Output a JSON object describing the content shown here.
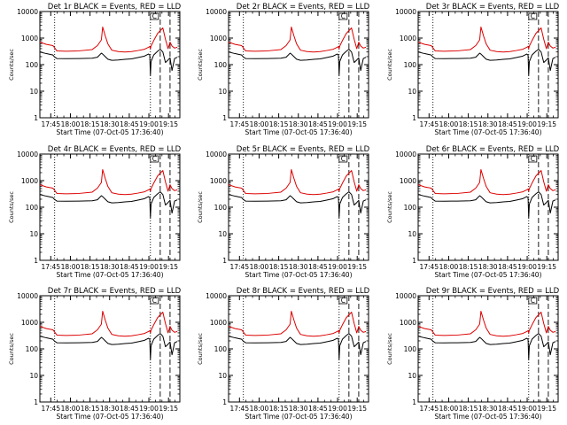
{
  "colors": {
    "events": "#000000",
    "lld": "#dd0000",
    "frame": "#000000"
  },
  "shared": {
    "ylabel": "Counts/sec",
    "xlabel": "Start Time (07-Oct-05 17:36:40)",
    "x_ticks": [
      "17:45",
      "18:00",
      "18:15",
      "18:30",
      "18:45",
      "19:00",
      "19:15"
    ],
    "y_ticks": [
      "1",
      "10",
      "100",
      "1000",
      "10000"
    ],
    "ylim": [
      1,
      10000
    ],
    "yscale": "log",
    "xlim_minutes_after_start": [
      0,
      107
    ],
    "x_tick_positions_minutes": [
      8.33,
      23.33,
      38.33,
      53.33,
      68.33,
      83.33,
      98.33
    ],
    "vline_dotted_minutes": [
      11.3,
      84.5
    ],
    "vline_dashed_minutes": [
      92.0,
      99.5
    ],
    "legend_marker_text": "C"
  },
  "chart_data": [
    {
      "type": "line",
      "title": "Det 1r BLACK = Events, RED = LLD",
      "x": [
        0,
        5,
        10,
        11,
        13,
        20,
        30,
        40,
        44,
        47,
        48,
        50,
        52,
        55,
        60,
        65,
        70,
        75,
        80,
        83,
        84,
        84.5,
        85,
        87,
        90,
        92,
        94,
        96,
        98,
        99.5,
        101,
        103,
        105
      ],
      "series": [
        {
          "values": [
            300,
            260,
            230,
            200,
            170,
            168,
            170,
            175,
            190,
            270,
            250,
            200,
            160,
            145,
            150,
            158,
            165,
            185,
            210,
            250,
            230,
            40,
            130,
            230,
            320,
            380,
            300,
            120,
            150,
            180,
            60,
            170,
            190
          ]
        },
        {
          "values": [
            700,
            580,
            520,
            450,
            330,
            320,
            330,
            370,
            520,
            850,
            2600,
            1200,
            600,
            350,
            310,
            300,
            310,
            340,
            380,
            450,
            480,
            400,
            500,
            800,
            1500,
            1900,
            2400,
            900,
            400,
            700,
            500,
            420,
            450
          ]
        }
      ]
    },
    {
      "type": "line",
      "title": "Det 2r BLACK = Events, RED = LLD",
      "x": [
        0,
        5,
        10,
        11,
        13,
        20,
        30,
        40,
        44,
        47,
        48,
        50,
        52,
        55,
        60,
        65,
        70,
        75,
        80,
        83,
        84,
        84.5,
        85,
        87,
        90,
        92,
        94,
        96,
        98,
        99.5,
        101,
        103,
        105
      ],
      "series": [
        {
          "values": [
            300,
            260,
            230,
            200,
            170,
            168,
            170,
            175,
            190,
            270,
            250,
            200,
            160,
            145,
            150,
            158,
            165,
            185,
            210,
            250,
            230,
            40,
            130,
            230,
            320,
            380,
            300,
            120,
            150,
            180,
            60,
            170,
            190
          ]
        },
        {
          "values": [
            700,
            580,
            520,
            450,
            330,
            320,
            330,
            370,
            520,
            850,
            2600,
            1200,
            600,
            350,
            310,
            300,
            310,
            340,
            380,
            450,
            480,
            400,
            500,
            800,
            1500,
            1900,
            2400,
            900,
            400,
            700,
            500,
            420,
            450
          ]
        }
      ]
    },
    {
      "type": "line",
      "title": "Det 3r BLACK = Events, RED = LLD",
      "x": [
        0,
        5,
        10,
        11,
        13,
        20,
        30,
        40,
        44,
        47,
        48,
        50,
        52,
        55,
        60,
        65,
        70,
        75,
        80,
        83,
        84,
        84.5,
        85,
        87,
        90,
        92,
        94,
        96,
        98,
        99.5,
        101,
        103,
        105
      ],
      "series": [
        {
          "values": [
            300,
            260,
            230,
            200,
            170,
            168,
            170,
            175,
            190,
            270,
            250,
            200,
            160,
            145,
            150,
            158,
            165,
            185,
            210,
            250,
            230,
            40,
            130,
            230,
            320,
            380,
            300,
            120,
            150,
            180,
            60,
            170,
            190
          ]
        },
        {
          "values": [
            700,
            580,
            520,
            450,
            330,
            320,
            330,
            370,
            520,
            850,
            2600,
            1200,
            600,
            350,
            310,
            300,
            310,
            340,
            380,
            450,
            480,
            400,
            500,
            800,
            1500,
            1900,
            2400,
            900,
            400,
            700,
            500,
            420,
            450
          ]
        }
      ]
    },
    {
      "type": "line",
      "title": "Det 4r BLACK = Events, RED = LLD",
      "x": [
        0,
        5,
        10,
        11,
        13,
        20,
        30,
        40,
        44,
        47,
        48,
        50,
        52,
        55,
        60,
        65,
        70,
        75,
        80,
        83,
        84,
        84.5,
        85,
        87,
        90,
        92,
        94,
        96,
        98,
        99.5,
        101,
        103,
        105
      ],
      "series": [
        {
          "values": [
            300,
            260,
            230,
            200,
            170,
            168,
            170,
            175,
            190,
            270,
            250,
            200,
            160,
            145,
            150,
            158,
            165,
            185,
            210,
            250,
            230,
            40,
            130,
            230,
            320,
            380,
            300,
            120,
            150,
            180,
            60,
            170,
            190
          ]
        },
        {
          "values": [
            700,
            580,
            520,
            450,
            330,
            320,
            330,
            370,
            520,
            850,
            2600,
            1200,
            600,
            350,
            310,
            300,
            310,
            340,
            380,
            450,
            480,
            400,
            500,
            800,
            1500,
            1900,
            2400,
            900,
            400,
            700,
            500,
            420,
            450
          ]
        }
      ]
    },
    {
      "type": "line",
      "title": "Det 5r BLACK = Events, RED = LLD",
      "x": [
        0,
        5,
        10,
        11,
        13,
        20,
        30,
        40,
        44,
        47,
        48,
        50,
        52,
        55,
        60,
        65,
        70,
        75,
        80,
        83,
        84,
        84.5,
        85,
        87,
        90,
        92,
        94,
        96,
        98,
        99.5,
        101,
        103,
        105
      ],
      "series": [
        {
          "values": [
            300,
            260,
            230,
            200,
            170,
            168,
            170,
            175,
            190,
            270,
            250,
            200,
            160,
            145,
            150,
            158,
            165,
            185,
            210,
            250,
            230,
            40,
            130,
            230,
            320,
            380,
            300,
            120,
            150,
            180,
            60,
            170,
            190
          ]
        },
        {
          "values": [
            700,
            580,
            520,
            450,
            330,
            320,
            330,
            370,
            520,
            850,
            2600,
            1200,
            600,
            350,
            310,
            300,
            310,
            340,
            380,
            450,
            480,
            400,
            500,
            800,
            1500,
            1900,
            2400,
            900,
            400,
            700,
            500,
            420,
            450
          ]
        }
      ]
    },
    {
      "type": "line",
      "title": "Det 6r BLACK = Events, RED = LLD",
      "x": [
        0,
        5,
        10,
        11,
        13,
        20,
        30,
        40,
        44,
        47,
        48,
        50,
        52,
        55,
        60,
        65,
        70,
        75,
        80,
        83,
        84,
        84.5,
        85,
        87,
        90,
        92,
        94,
        96,
        98,
        99.5,
        101,
        103,
        105
      ],
      "series": [
        {
          "values": [
            300,
            260,
            230,
            200,
            170,
            168,
            170,
            175,
            190,
            270,
            250,
            200,
            160,
            145,
            150,
            158,
            165,
            185,
            210,
            250,
            230,
            40,
            130,
            230,
            320,
            380,
            300,
            120,
            150,
            180,
            60,
            170,
            190
          ]
        },
        {
          "values": [
            700,
            580,
            520,
            450,
            330,
            320,
            330,
            370,
            520,
            850,
            2600,
            1200,
            600,
            350,
            310,
            300,
            310,
            340,
            380,
            450,
            480,
            400,
            500,
            800,
            1500,
            1900,
            2400,
            900,
            400,
            700,
            500,
            420,
            450
          ]
        }
      ]
    },
    {
      "type": "line",
      "title": "Det 7r BLACK = Events, RED = LLD",
      "x": [
        0,
        5,
        10,
        11,
        13,
        20,
        30,
        40,
        44,
        47,
        48,
        50,
        52,
        55,
        60,
        65,
        70,
        75,
        80,
        83,
        84,
        84.5,
        85,
        87,
        90,
        92,
        94,
        96,
        98,
        99.5,
        101,
        103,
        105
      ],
      "series": [
        {
          "values": [
            300,
            260,
            230,
            200,
            170,
            168,
            170,
            175,
            190,
            270,
            250,
            200,
            160,
            145,
            150,
            158,
            165,
            185,
            210,
            250,
            230,
            40,
            130,
            230,
            320,
            380,
            300,
            120,
            150,
            180,
            60,
            170,
            190
          ]
        },
        {
          "values": [
            700,
            580,
            520,
            450,
            330,
            320,
            330,
            370,
            520,
            850,
            2600,
            1200,
            600,
            350,
            310,
            300,
            310,
            340,
            380,
            450,
            480,
            400,
            500,
            800,
            1500,
            1900,
            2400,
            900,
            400,
            700,
            500,
            420,
            450
          ]
        }
      ]
    },
    {
      "type": "line",
      "title": "Det 8r BLACK = Events, RED = LLD",
      "x": [
        0,
        5,
        10,
        11,
        13,
        20,
        30,
        40,
        44,
        47,
        48,
        50,
        52,
        55,
        60,
        65,
        70,
        75,
        80,
        83,
        84,
        84.5,
        85,
        87,
        90,
        92,
        94,
        96,
        98,
        99.5,
        101,
        103,
        105
      ],
      "series": [
        {
          "values": [
            300,
            260,
            230,
            200,
            170,
            168,
            170,
            175,
            190,
            270,
            250,
            200,
            160,
            145,
            150,
            158,
            165,
            185,
            210,
            250,
            230,
            40,
            130,
            230,
            320,
            380,
            300,
            120,
            150,
            180,
            60,
            170,
            190
          ]
        },
        {
          "values": [
            700,
            580,
            520,
            450,
            330,
            320,
            330,
            370,
            520,
            850,
            2600,
            1200,
            600,
            350,
            310,
            300,
            310,
            340,
            380,
            450,
            480,
            400,
            500,
            800,
            1500,
            1900,
            2400,
            900,
            400,
            700,
            500,
            420,
            450
          ]
        }
      ]
    },
    {
      "type": "line",
      "title": "Det 9r BLACK = Events, RED = LLD",
      "x": [
        0,
        5,
        10,
        11,
        13,
        20,
        30,
        40,
        44,
        47,
        48,
        50,
        52,
        55,
        60,
        65,
        70,
        75,
        80,
        83,
        84,
        84.5,
        85,
        87,
        90,
        92,
        94,
        96,
        98,
        99.5,
        101,
        103,
        105
      ],
      "series": [
        {
          "values": [
            300,
            260,
            230,
            200,
            170,
            168,
            170,
            175,
            190,
            270,
            250,
            200,
            160,
            145,
            150,
            158,
            165,
            185,
            210,
            250,
            230,
            40,
            130,
            230,
            320,
            380,
            300,
            120,
            150,
            180,
            60,
            170,
            190
          ]
        },
        {
          "values": [
            700,
            580,
            520,
            450,
            330,
            320,
            330,
            370,
            520,
            850,
            2600,
            1200,
            600,
            350,
            310,
            300,
            310,
            340,
            380,
            450,
            480,
            400,
            500,
            800,
            1500,
            1900,
            2400,
            900,
            400,
            700,
            500,
            420,
            450
          ]
        }
      ]
    }
  ]
}
